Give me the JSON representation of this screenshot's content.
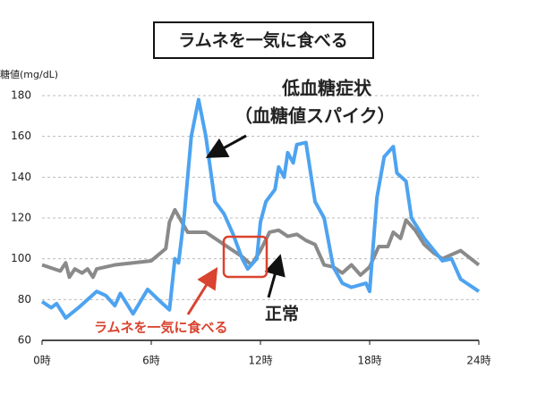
{
  "chart_data": {
    "type": "line",
    "title": "ラムネを一気に食べる",
    "y_label": "糖値(mg/dL)",
    "annotations": [
      "低血糖症状",
      "（血糖値スパイク）",
      "正常",
      "ラムネを一気に食べる"
    ],
    "xlim": [
      0,
      24
    ],
    "xticks": [
      {
        "value": 0,
        "label": "0時"
      },
      {
        "value": 6,
        "label": "6時"
      },
      {
        "value": 12,
        "label": "12時"
      },
      {
        "value": 18,
        "label": "18時"
      },
      {
        "value": 24,
        "label": "24時"
      }
    ],
    "ylim": [
      60,
      180
    ],
    "yticks": [
      60,
      80,
      100,
      120,
      140,
      160,
      180
    ],
    "grid": true,
    "series": [
      {
        "color": "#4da3f0",
        "x": [
          0,
          0.5,
          0.8,
          1.3,
          2,
          3,
          3.5,
          4,
          4.3,
          5,
          5.8,
          6.5,
          7,
          7.3,
          7.5,
          7.8,
          8.2,
          8.6,
          9,
          9.5,
          10,
          10.5,
          11,
          11.3,
          11.8,
          12,
          12.3,
          12.8,
          13,
          13.3,
          13.5,
          13.8,
          14,
          14.5,
          15,
          15.5,
          16,
          16.5,
          17,
          17.8,
          18,
          18.4,
          18.8,
          19.3,
          19.5,
          20,
          20.3,
          21,
          22,
          22.5,
          23,
          24
        ],
        "values": [
          79,
          76,
          78,
          71,
          76,
          84,
          82,
          77,
          83,
          73,
          85,
          79,
          75,
          100,
          98,
          120,
          160,
          178,
          160,
          128,
          122,
          112,
          100,
          95,
          100,
          118,
          128,
          134,
          145,
          140,
          152,
          147,
          156,
          157,
          128,
          120,
          96,
          88,
          86,
          88,
          84,
          130,
          150,
          155,
          142,
          138,
          120,
          110,
          99,
          100,
          90,
          84
        ]
      },
      {
        "color": "#8a8a8a",
        "x": [
          0,
          1,
          1.3,
          1.5,
          1.8,
          2.2,
          2.5,
          2.8,
          3,
          4,
          5,
          6,
          6.8,
          7,
          7.3,
          8,
          9,
          10,
          11,
          11.5,
          12,
          12.5,
          13,
          13.5,
          14,
          14.5,
          15,
          15.5,
          16,
          16.5,
          17,
          17.5,
          18,
          18.5,
          19,
          19.3,
          19.7,
          20,
          20.5,
          21,
          21.5,
          22,
          22.5,
          23,
          24
        ],
        "values": [
          97,
          94,
          98,
          91,
          95,
          93,
          95,
          91,
          95,
          97,
          98,
          99,
          105,
          118,
          124,
          113,
          113,
          107,
          101,
          97,
          104,
          113,
          114,
          111,
          112,
          109,
          107,
          97,
          96,
          93,
          97,
          92,
          96,
          106,
          106,
          113,
          110,
          119,
          114,
          107,
          103,
          100,
          102,
          104,
          97
        ]
      }
    ]
  }
}
